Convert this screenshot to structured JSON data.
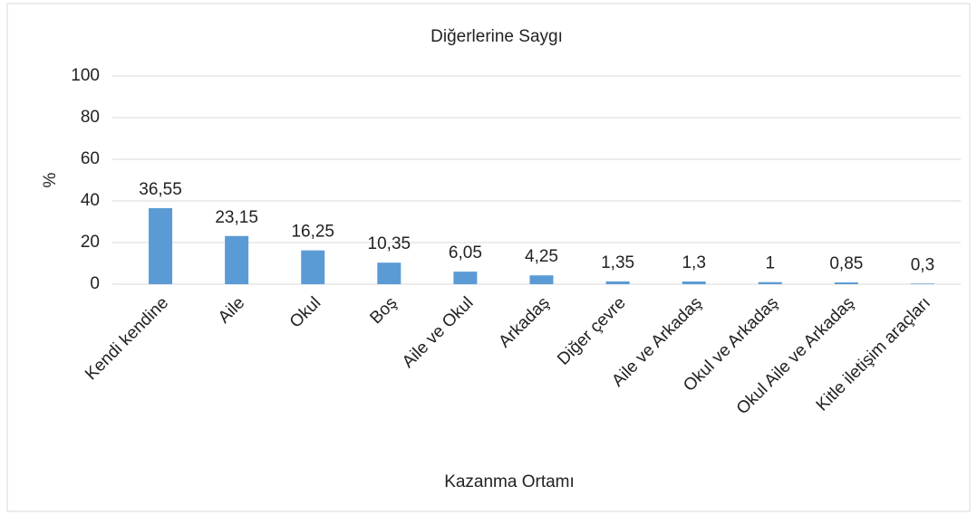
{
  "chart_data": {
    "type": "bar",
    "title": "Diğerlerine Saygı",
    "x_label": "Kazanma Ortamı",
    "y_label": "%",
    "categories": [
      "Kendi kendine",
      "Aile",
      "Okul",
      "Boş",
      "Aile ve Okul",
      "Arkadaş",
      "Diğer çevre",
      "Aile ve Arkadaş",
      "Okul ve Arkadaş",
      "Okul Aile ve Arkadaş",
      "Kitle iletişim araçları"
    ],
    "values": [
      36.55,
      23.15,
      16.25,
      10.35,
      6.05,
      4.25,
      1.35,
      1.3,
      1,
      0.85,
      0.3
    ],
    "value_labels": [
      "36,55",
      "23,15",
      "16,25",
      "10,35",
      "6,05",
      "4,25",
      "1,35",
      "1,3",
      "1",
      "0,85",
      "0,3"
    ],
    "color": "#5b9bd5",
    "ylim": [
      0,
      100
    ],
    "yticks": [
      0,
      20,
      40,
      60,
      80,
      100
    ],
    "grid": true
  }
}
